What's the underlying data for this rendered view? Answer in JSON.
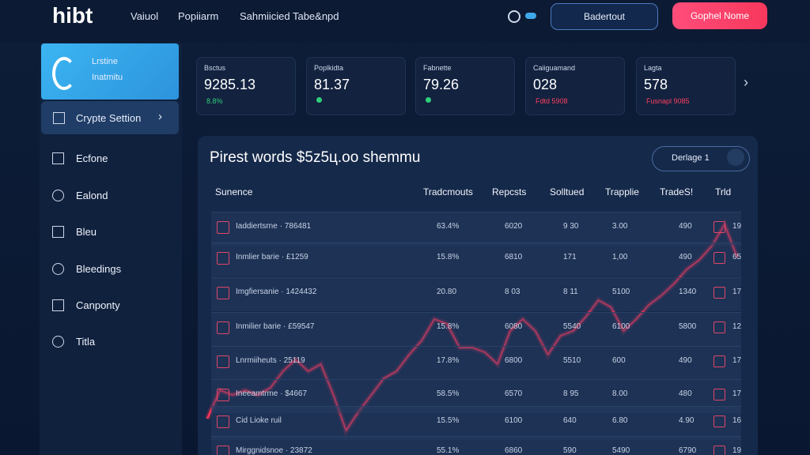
{
  "header": {
    "logo": "hibt",
    "nav": [
      "Vaiuol",
      "Popiiarm",
      "Sahmiicied Tabe&npd"
    ],
    "button_outline": "Badertout",
    "button_primary": "Gophel Nome"
  },
  "sidebar": {
    "active": {
      "title": "Lrstine",
      "subtitle": "Inatmitu"
    },
    "selected": "Crypte Settion",
    "items": [
      "Ecfone",
      "Ealond",
      "Bleu",
      "Bleedings",
      "Canponty",
      "Titla"
    ]
  },
  "stats": [
    {
      "label": "Bsctus",
      "value": "9285.13",
      "change": "8.8%",
      "direction": "up"
    },
    {
      "label": "Poplkidta",
      "value": "81.37",
      "direction": "up"
    },
    {
      "label": "Fabnette",
      "value": "79.26",
      "direction": "up"
    },
    {
      "label": "Caiiguamand",
      "value": "028",
      "change": "Fdtd 5908",
      "direction": "down"
    },
    {
      "label": "Lagta",
      "value": "578",
      "change": "Fusnapl 9085",
      "direction": "down"
    }
  ],
  "panel": {
    "title": "Pirest words $5z5ц.oo shemmu",
    "dropdown": "Derlage 1",
    "columns": [
      "Sunence",
      "Tradcmouts",
      "Repcsts",
      "Solltued",
      "Trapplie",
      "TradeS!",
      "Trld"
    ],
    "rows": [
      [
        "Iaddiertsrne · 786481",
        "63.4%",
        "6020",
        "9 30",
        "3.00",
        "490",
        "19"
      ],
      [
        "Inmlier barie · £1259",
        "15.8%",
        "6810",
        "171",
        "1,00",
        "490",
        "65"
      ],
      [
        "Imgfiersanie · 1424432",
        "20.80",
        "8 03",
        "8 11",
        "5100",
        "1340",
        "17"
      ],
      [
        "Inmilier barie · £59547",
        "15.8%",
        "6080",
        "5540",
        "6100",
        "5800",
        "12"
      ],
      [
        "Lnrmiiheuts · 25119",
        "17.8%",
        "6800",
        "5510",
        "600",
        "490",
        "17"
      ],
      [
        "Ineeamtrme · $4667",
        "58.5%",
        "6570",
        "8 95",
        "8.00",
        "480",
        "17"
      ],
      [
        "Cid Lioke ruil",
        "15.5%",
        "6100",
        "640",
        "6.80",
        "4.90",
        "16"
      ],
      [
        "Mirggnidsnoe · 23872",
        "55.1%",
        "6860",
        "590",
        "5490",
        "6790",
        "19"
      ]
    ]
  },
  "trend": {
    "color": "#ff3358",
    "values": [
      10,
      22,
      20,
      22,
      20,
      23,
      30,
      35,
      30,
      33,
      20,
      5,
      13,
      20,
      27,
      30,
      37,
      43,
      52,
      50,
      40,
      40,
      38,
      33,
      47,
      52,
      47,
      37,
      45,
      47,
      53,
      60,
      57,
      47,
      52,
      58,
      62,
      67,
      73,
      77,
      83,
      92,
      78
    ]
  }
}
